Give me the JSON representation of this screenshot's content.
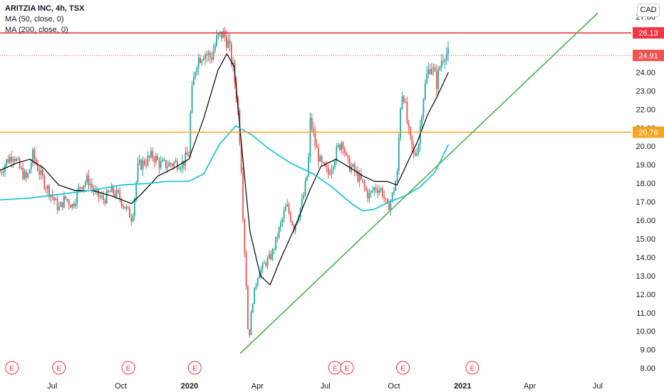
{
  "legend": {
    "title": "ARITZIA INC, 4h, TSX",
    "ma1": "MA (50, close, 0)",
    "ma2": "MA (200, close, 0)"
  },
  "currency_button": "CAD",
  "colors": {
    "up": "#26a69a",
    "down": "#ef5350",
    "ma50": "#000000",
    "ma200": "#26c6da",
    "resistance": "#f23645",
    "support": "#f5a623",
    "trendline": "#4caf50",
    "price_line": "#ef5350"
  },
  "chart_data": {
    "type": "line",
    "title": "ARITZIA INC, 4h, TSX",
    "ylim": [
      7.6,
      27.6
    ],
    "y_ticks": [
      "8.00",
      "9.00",
      "10.00",
      "11.00",
      "12.00",
      "13.00",
      "14.00",
      "15.00",
      "16.00",
      "17.00",
      "18.00",
      "19.00",
      "20.00",
      "21.00",
      "22.00",
      "23.00",
      "24.00",
      "25.00",
      "26.00",
      "27.00"
    ],
    "x_ticks": [
      {
        "label": "Jul",
        "date": "2019-07-01",
        "bold": false
      },
      {
        "label": "Oct",
        "date": "2019-10-01",
        "bold": false
      },
      {
        "label": "2020",
        "date": "2020-01-01",
        "bold": true
      },
      {
        "label": "Apr",
        "date": "2020-04-01",
        "bold": false
      },
      {
        "label": "Jul",
        "date": "2020-07-01",
        "bold": false
      },
      {
        "label": "Oct",
        "date": "2020-10-01",
        "bold": false
      },
      {
        "label": "2021",
        "date": "2021-01-01",
        "bold": true
      },
      {
        "label": "Apr",
        "date": "2021-04-01",
        "bold": false
      },
      {
        "label": "Jul",
        "date": "2021-07-01",
        "bold": false
      }
    ],
    "xlim": [
      "2019-04-22",
      "2021-08-15"
    ],
    "price_path": [
      [
        "2019-04-22",
        18.6
      ],
      [
        "2019-05-01",
        19.2
      ],
      [
        "2019-05-10",
        19.6
      ],
      [
        "2019-05-18",
        18.8
      ],
      [
        "2019-05-28",
        18.2
      ],
      [
        "2019-06-05",
        19.5
      ],
      [
        "2019-06-14",
        18.6
      ],
      [
        "2019-06-22",
        17.9
      ],
      [
        "2019-07-01",
        17.3
      ],
      [
        "2019-07-10",
        16.6
      ],
      [
        "2019-07-18",
        17.2
      ],
      [
        "2019-07-28",
        16.8
      ],
      [
        "2019-08-08",
        17.9
      ],
      [
        "2019-08-18",
        18.2
      ],
      [
        "2019-08-28",
        17.4
      ],
      [
        "2019-09-08",
        17.1
      ],
      [
        "2019-09-18",
        17.6
      ],
      [
        "2019-09-28",
        17.3
      ],
      [
        "2019-10-08",
        16.6
      ],
      [
        "2019-10-16",
        16.1
      ],
      [
        "2019-10-24",
        18.9
      ],
      [
        "2019-11-03",
        19.2
      ],
      [
        "2019-11-13",
        19.5
      ],
      [
        "2019-11-23",
        19.0
      ],
      [
        "2019-12-03",
        19.0
      ],
      [
        "2019-12-13",
        19.1
      ],
      [
        "2019-12-23",
        19.1
      ],
      [
        "2019-12-31",
        19.6
      ],
      [
        "2020-01-03",
        22.5
      ],
      [
        "2020-01-10",
        24.6
      ],
      [
        "2020-01-20",
        25.1
      ],
      [
        "2020-01-30",
        24.8
      ],
      [
        "2020-02-07",
        25.8
      ],
      [
        "2020-02-14",
        26.1
      ],
      [
        "2020-02-21",
        25.7
      ],
      [
        "2020-02-28",
        24.3
      ],
      [
        "2020-03-05",
        22.5
      ],
      [
        "2020-03-10",
        19.3
      ],
      [
        "2020-03-13",
        15.9
      ],
      [
        "2020-03-17",
        12.5
      ],
      [
        "2020-03-20",
        9.3
      ],
      [
        "2020-03-25",
        11.5
      ],
      [
        "2020-04-01",
        13.0
      ],
      [
        "2020-04-10",
        13.6
      ],
      [
        "2020-04-20",
        14.1
      ],
      [
        "2020-05-01",
        15.6
      ],
      [
        "2020-05-10",
        16.8
      ],
      [
        "2020-05-20",
        15.6
      ],
      [
        "2020-06-01",
        17.1
      ],
      [
        "2020-06-08",
        18.8
      ],
      [
        "2020-06-11",
        21.5
      ],
      [
        "2020-06-18",
        20.0
      ],
      [
        "2020-06-25",
        19.0
      ],
      [
        "2020-07-05",
        18.5
      ],
      [
        "2020-07-15",
        19.6
      ],
      [
        "2020-07-24",
        20.4
      ],
      [
        "2020-07-30",
        19.1
      ],
      [
        "2020-08-08",
        18.7
      ],
      [
        "2020-08-18",
        18.1
      ],
      [
        "2020-08-28",
        17.3
      ],
      [
        "2020-09-06",
        17.8
      ],
      [
        "2020-09-15",
        17.6
      ],
      [
        "2020-09-22",
        16.6
      ],
      [
        "2020-09-28",
        17.2
      ],
      [
        "2020-10-06",
        18.6
      ],
      [
        "2020-10-09",
        22.0
      ],
      [
        "2020-10-13",
        23.2
      ],
      [
        "2020-10-20",
        20.8
      ],
      [
        "2020-10-28",
        19.4
      ],
      [
        "2020-11-03",
        20.2
      ],
      [
        "2020-11-09",
        22.6
      ],
      [
        "2020-11-14",
        23.8
      ],
      [
        "2020-11-20",
        24.5
      ],
      [
        "2020-11-27",
        23.4
      ],
      [
        "2020-12-03",
        24.6
      ],
      [
        "2020-12-08",
        25.1
      ],
      [
        "2020-12-13",
        24.9
      ]
    ],
    "series": [
      {
        "name": "MA (50, close, 0)",
        "color": "#000000",
        "points": [
          [
            "2019-04-22",
            18.7
          ],
          [
            "2019-05-15",
            19.1
          ],
          [
            "2019-06-01",
            19.3
          ],
          [
            "2019-06-20",
            18.8
          ],
          [
            "2019-07-10",
            17.9
          ],
          [
            "2019-08-01",
            17.6
          ],
          [
            "2019-08-25",
            17.6
          ],
          [
            "2019-09-20",
            17.3
          ],
          [
            "2019-10-15",
            16.9
          ],
          [
            "2019-10-28",
            17.4
          ],
          [
            "2019-11-20",
            18.4
          ],
          [
            "2019-12-10",
            18.8
          ],
          [
            "2019-12-31",
            19.3
          ],
          [
            "2020-01-20",
            21.5
          ],
          [
            "2020-02-08",
            24.1
          ],
          [
            "2020-02-20",
            25.0
          ],
          [
            "2020-03-01",
            24.3
          ],
          [
            "2020-03-12",
            19.5
          ],
          [
            "2020-03-22",
            15.4
          ],
          [
            "2020-04-05",
            13.0
          ],
          [
            "2020-04-18",
            12.5
          ],
          [
            "2020-05-01",
            13.8
          ],
          [
            "2020-05-20",
            15.5
          ],
          [
            "2020-06-10",
            17.6
          ],
          [
            "2020-06-25",
            18.9
          ],
          [
            "2020-07-15",
            19.3
          ],
          [
            "2020-08-01",
            18.9
          ],
          [
            "2020-08-20",
            18.4
          ],
          [
            "2020-09-05",
            18.1
          ],
          [
            "2020-09-22",
            18.1
          ],
          [
            "2020-10-05",
            17.9
          ],
          [
            "2020-10-20",
            19.2
          ],
          [
            "2020-11-01",
            20.2
          ],
          [
            "2020-11-15",
            21.7
          ],
          [
            "2020-11-28",
            22.7
          ],
          [
            "2020-12-13",
            24.0
          ]
        ]
      },
      {
        "name": "MA (200, close, 0)",
        "color": "#26c6da",
        "points": [
          [
            "2019-04-22",
            17.1
          ],
          [
            "2019-06-01",
            17.2
          ],
          [
            "2019-07-10",
            17.4
          ],
          [
            "2019-08-20",
            17.6
          ],
          [
            "2019-10-01",
            17.9
          ],
          [
            "2019-11-10",
            18.0
          ],
          [
            "2019-12-01",
            18.1
          ],
          [
            "2019-12-31",
            18.1
          ],
          [
            "2020-01-20",
            18.5
          ],
          [
            "2020-02-10",
            20.1
          ],
          [
            "2020-03-03",
            21.1
          ],
          [
            "2020-03-25",
            20.6
          ],
          [
            "2020-04-15",
            19.9
          ],
          [
            "2020-05-15",
            19.1
          ],
          [
            "2020-06-15",
            18.5
          ],
          [
            "2020-07-10",
            17.8
          ],
          [
            "2020-08-05",
            16.9
          ],
          [
            "2020-08-20",
            16.5
          ],
          [
            "2020-09-05",
            16.6
          ],
          [
            "2020-09-25",
            17.0
          ],
          [
            "2020-10-15",
            17.3
          ],
          [
            "2020-11-05",
            17.8
          ],
          [
            "2020-11-25",
            18.6
          ],
          [
            "2020-12-13",
            20.1
          ]
        ]
      }
    ],
    "horizontal_levels": [
      {
        "value": 26.13,
        "label": "26.13",
        "color": "#f23645"
      },
      {
        "value": 20.76,
        "label": "20.76",
        "color": "#f5a623"
      }
    ],
    "last_price": {
      "value": 24.91,
      "label": "24.91"
    },
    "trendline": {
      "start": [
        "2020-03-09",
        8.8
      ],
      "end": [
        "2021-07-01",
        27.2
      ]
    },
    "earnings_markers": {
      "label": "E",
      "dates": [
        "2019-05-08",
        "2019-07-10",
        "2019-10-11",
        "2020-01-08",
        "2020-07-14",
        "2020-07-30",
        "2020-10-13",
        "2021-01-14"
      ]
    },
    "grid": false
  }
}
